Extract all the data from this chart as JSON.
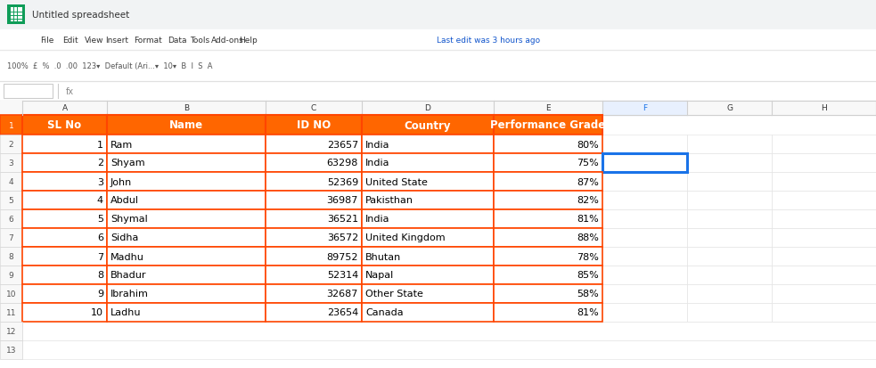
{
  "headers": [
    "SL No",
    "Name",
    "ID NO",
    "Country",
    "Performance Grade"
  ],
  "rows": [
    [
      1,
      "Ram",
      23657,
      "India",
      "80%"
    ],
    [
      2,
      "Shyam",
      63298,
      "India",
      "75%"
    ],
    [
      3,
      "John",
      52369,
      "United State",
      "87%"
    ],
    [
      4,
      "Abdul",
      36987,
      "Pakisthan",
      "82%"
    ],
    [
      5,
      "Shymal",
      36521,
      "India",
      "81%"
    ],
    [
      6,
      "Sidha",
      36572,
      "United Kingdom",
      "88%"
    ],
    [
      7,
      "Madhu",
      89752,
      "Bhutan",
      "78%"
    ],
    [
      8,
      "Bhadur",
      52314,
      "Napal",
      "85%"
    ],
    [
      9,
      "Ibrahim",
      32687,
      "Other State",
      "58%"
    ],
    [
      10,
      "Ladhu",
      23654,
      "Canada",
      "81%"
    ]
  ],
  "header_bg": "#FF6600",
  "header_fg": "#FFFFFF",
  "cell_bg": "#FFFFFF",
  "cell_fg": "#000000",
  "border_color": "#FF4500",
  "grid_line_color": "#D0D0D0",
  "fig_bg": "#FFFFFF",
  "col_letters": [
    "A",
    "B",
    "C",
    "D",
    "E",
    "F",
    "G",
    "H"
  ],
  "col_alignments": [
    "right",
    "left",
    "right",
    "left",
    "right"
  ],
  "menu_items": [
    "File",
    "Edit",
    "View",
    "Insert",
    "Format",
    "Data",
    "Tools",
    "Add-ons",
    "Help"
  ],
  "last_edit_text": "Last edit was 3 hours ago",
  "title_text": "Untitled spreadsheet",
  "selected_row_idx": 1
}
